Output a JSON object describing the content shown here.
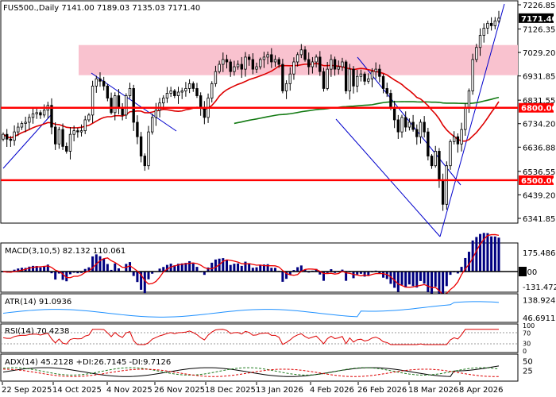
{
  "chart_data": [
    {
      "type": "candlestick",
      "title": "FUS500.,Daily  7141.00 7189.03 7135.03 7171.40",
      "ylim": [
        6300,
        7230
      ],
      "y_ticks": [
        "7226.85",
        "7126.35",
        "7029.20",
        "6931.85",
        "6831.55",
        "6734.20",
        "6636.88",
        "6536.55",
        "6439.20",
        "6341.85"
      ],
      "x_ticks": [
        "22 Sep 2025",
        "14 Oct 2025",
        "4 Nov 2025",
        "26 Nov 2025",
        "18 Dec 2025",
        "13 Jan 2026",
        "4 Feb 2026",
        "26 Feb 2026",
        "18 Mar 2026",
        "8 Apr 2026"
      ],
      "last_price": "7171.40",
      "horizontal_levels": [
        {
          "value": 6800,
          "label": "6800.00",
          "color": "#ff0000"
        },
        {
          "value": 6500,
          "label": "6500.00",
          "color": "#ff0000"
        }
      ],
      "resistance_zone": {
        "from": 6935,
        "to": 7060,
        "color": "#f9c2cf"
      },
      "ma_fast_color": "#dd0000",
      "ma_slow_color": "#137a13",
      "closes": [
        6690,
        6670,
        6665,
        6700,
        6720,
        6735,
        6740,
        6760,
        6775,
        6780,
        6770,
        6790,
        6810,
        6720,
        6650,
        6710,
        6640,
        6620,
        6690,
        6705,
        6700,
        6705,
        6750,
        6770,
        6890,
        6920,
        6910,
        6890,
        6840,
        6780,
        6850,
        6800,
        6770,
        6850,
        6880,
        6740,
        6680,
        6600,
        6560,
        6700,
        6760,
        6790,
        6820,
        6840,
        6860,
        6870,
        6850,
        6865,
        6870,
        6880,
        6900,
        6880,
        6850,
        6800,
        6760,
        6840,
        6900,
        6950,
        6980,
        7000,
        6990,
        6950,
        6970,
        6980,
        6960,
        7010,
        7000,
        6960,
        6970,
        7000,
        7010,
        7020,
        6990,
        7000,
        6980,
        6870,
        6900,
        6940,
        6990,
        7020,
        7040,
        7000,
        6970,
        6990,
        7010,
        6950,
        6880,
        6960,
        7000,
        6960,
        6970,
        6990,
        6870,
        6960,
        6890,
        6930,
        6940,
        6910,
        6920,
        6950,
        6960,
        6930,
        6880,
        6860,
        6800,
        6750,
        6700,
        6760,
        6720,
        6740,
        6710,
        6680,
        6740,
        6700,
        6600,
        6560,
        6620,
        6500,
        6400,
        6560,
        6660,
        6680,
        6650,
        6710,
        6800,
        6870,
        7000,
        7050,
        7100,
        7130,
        7150,
        7140,
        7160,
        7171.4
      ]
    },
    {
      "type": "histogram",
      "title": "MACD(3,10,5) 82.132 110.061",
      "ylim": [
        -160,
        200
      ],
      "y_ticks": [
        "175.486",
        "0.00",
        "-131.472"
      ],
      "signal_color": "#ee0000",
      "bar_color": "#000080"
    },
    {
      "type": "line",
      "title": "ATR(14) 91.0936",
      "ylim": [
        35,
        150
      ],
      "y_ticks": [
        "138.9246",
        "46.6911"
      ],
      "color": "#1e90ff"
    },
    {
      "type": "line",
      "title": "RSI(14) 70.4238",
      "ylim": [
        0,
        100
      ],
      "y_ticks": [
        "100",
        "70",
        "30",
        "0"
      ],
      "color": "#dd0000"
    },
    {
      "type": "line",
      "title": "ADX(14) 45.2128 +DI:26.7145 -DI:9.7126",
      "ylim": [
        0,
        60
      ],
      "y_ticks": [
        "50",
        "25"
      ],
      "series": [
        {
          "name": "ADX",
          "color": "#000000"
        },
        {
          "name": "+DI",
          "color": "#1e7a1e"
        },
        {
          "name": "-DI",
          "color": "#dd0000"
        }
      ]
    }
  ]
}
